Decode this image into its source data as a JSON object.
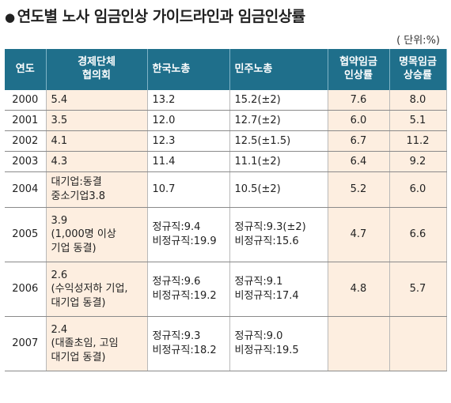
{
  "title": "연도별 노사 임금인상 가이드라인과 임금인상률",
  "bullet": "●",
  "unit": "( 단위:%)",
  "headers": {
    "year": "연도",
    "employer": "경제단체\n협의회",
    "fktu": "한국노총",
    "kctu": "민주노총",
    "negotiated": "협약임금\n인상률",
    "nominal": "명목임금\n상승률"
  },
  "rows": [
    {
      "year": "2000",
      "employer": "5.4",
      "fktu": "13.2",
      "kctu": "15.2(±2)",
      "negotiated": "7.6",
      "nominal": "8.0"
    },
    {
      "year": "2001",
      "employer": "3.5",
      "fktu": "12.0",
      "kctu": "12.7(±2)",
      "negotiated": "6.0",
      "nominal": "5.1"
    },
    {
      "year": "2002",
      "employer": "4.1",
      "fktu": "12.3",
      "kctu": "12.5(±1.5)",
      "negotiated": "6.7",
      "nominal": "11.2"
    },
    {
      "year": "2003",
      "employer": "4.3",
      "fktu": "11.4",
      "kctu": "11.1(±2)",
      "negotiated": "6.4",
      "nominal": "9.2"
    },
    {
      "year": "2004",
      "employer": "대기업:동결\n중소기업3.8",
      "fktu": "10.7",
      "kctu": "10.5(±2)",
      "negotiated": "5.2",
      "nominal": "6.0"
    },
    {
      "year": "2005",
      "employer": "3.9\n(1,000명 이상\n기업 동결)",
      "fktu": "정규직:9.4\n비정규직:19.9",
      "kctu": "정규직:9.3(±2)\n비정규직:15.6",
      "negotiated": "4.7",
      "nominal": "6.6"
    },
    {
      "year": "2006",
      "employer": "2.6\n(수익성저하 기업,\n대기업 동결)",
      "fktu": "정규직:9.6\n비정규직:19.2",
      "kctu": "정규직:9.1\n비정규직:17.4",
      "negotiated": "4.8",
      "nominal": "5.7"
    },
    {
      "year": "2007",
      "employer": "2.4\n(대졸초임, 고임\n대기업 동결)",
      "fktu": "정규직:9.3\n비정규직:18.2",
      "kctu": "정규직:9.0\n비정규직:19.5",
      "negotiated": "",
      "nominal": ""
    }
  ]
}
